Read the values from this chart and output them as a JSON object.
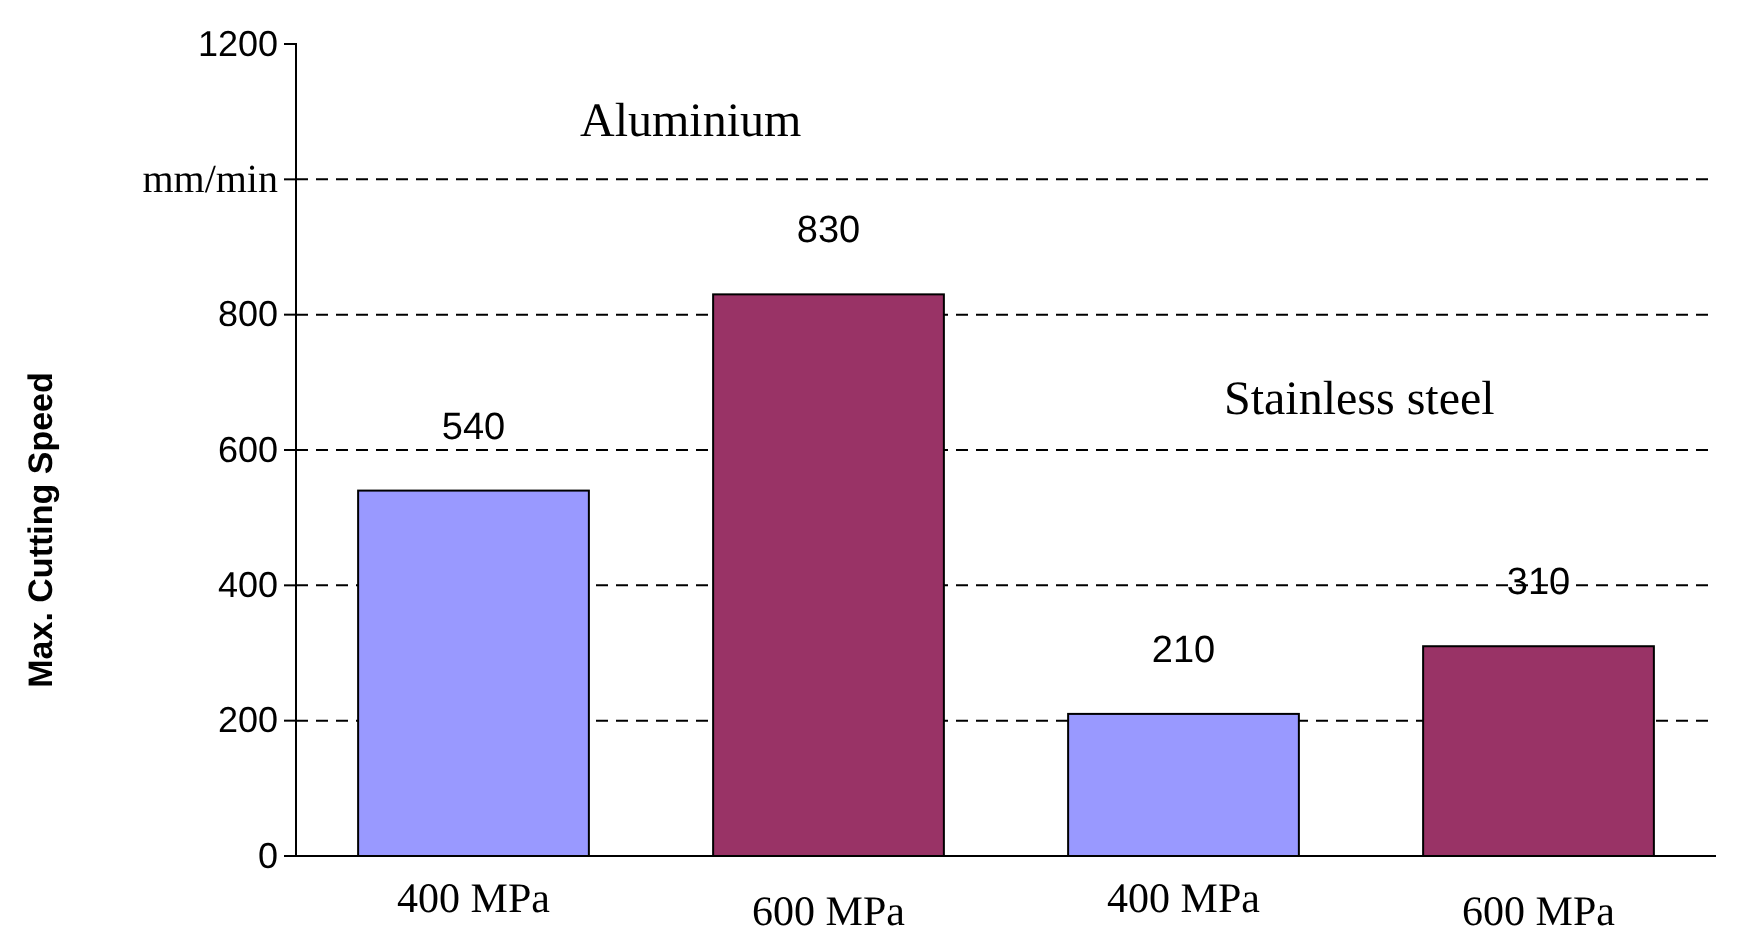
{
  "chart_data": {
    "type": "bar",
    "ylabel": "Max. Cutting Speed",
    "categories": [
      "400 MPa",
      "600 MPa",
      "400 MPa",
      "600 MPa"
    ],
    "values": [
      540,
      830,
      210,
      310
    ],
    "colors": [
      "#9999ff",
      "#993366",
      "#9999ff",
      "#993366"
    ],
    "ylim": [
      0,
      1200
    ],
    "yticks": [
      0,
      200,
      400,
      600,
      800,
      {
        "value": 1000,
        "label": "mm/min"
      },
      1200
    ],
    "grid": "y",
    "data_labels": true,
    "annotations": [
      "Aluminium",
      "Stainless steel"
    ]
  }
}
